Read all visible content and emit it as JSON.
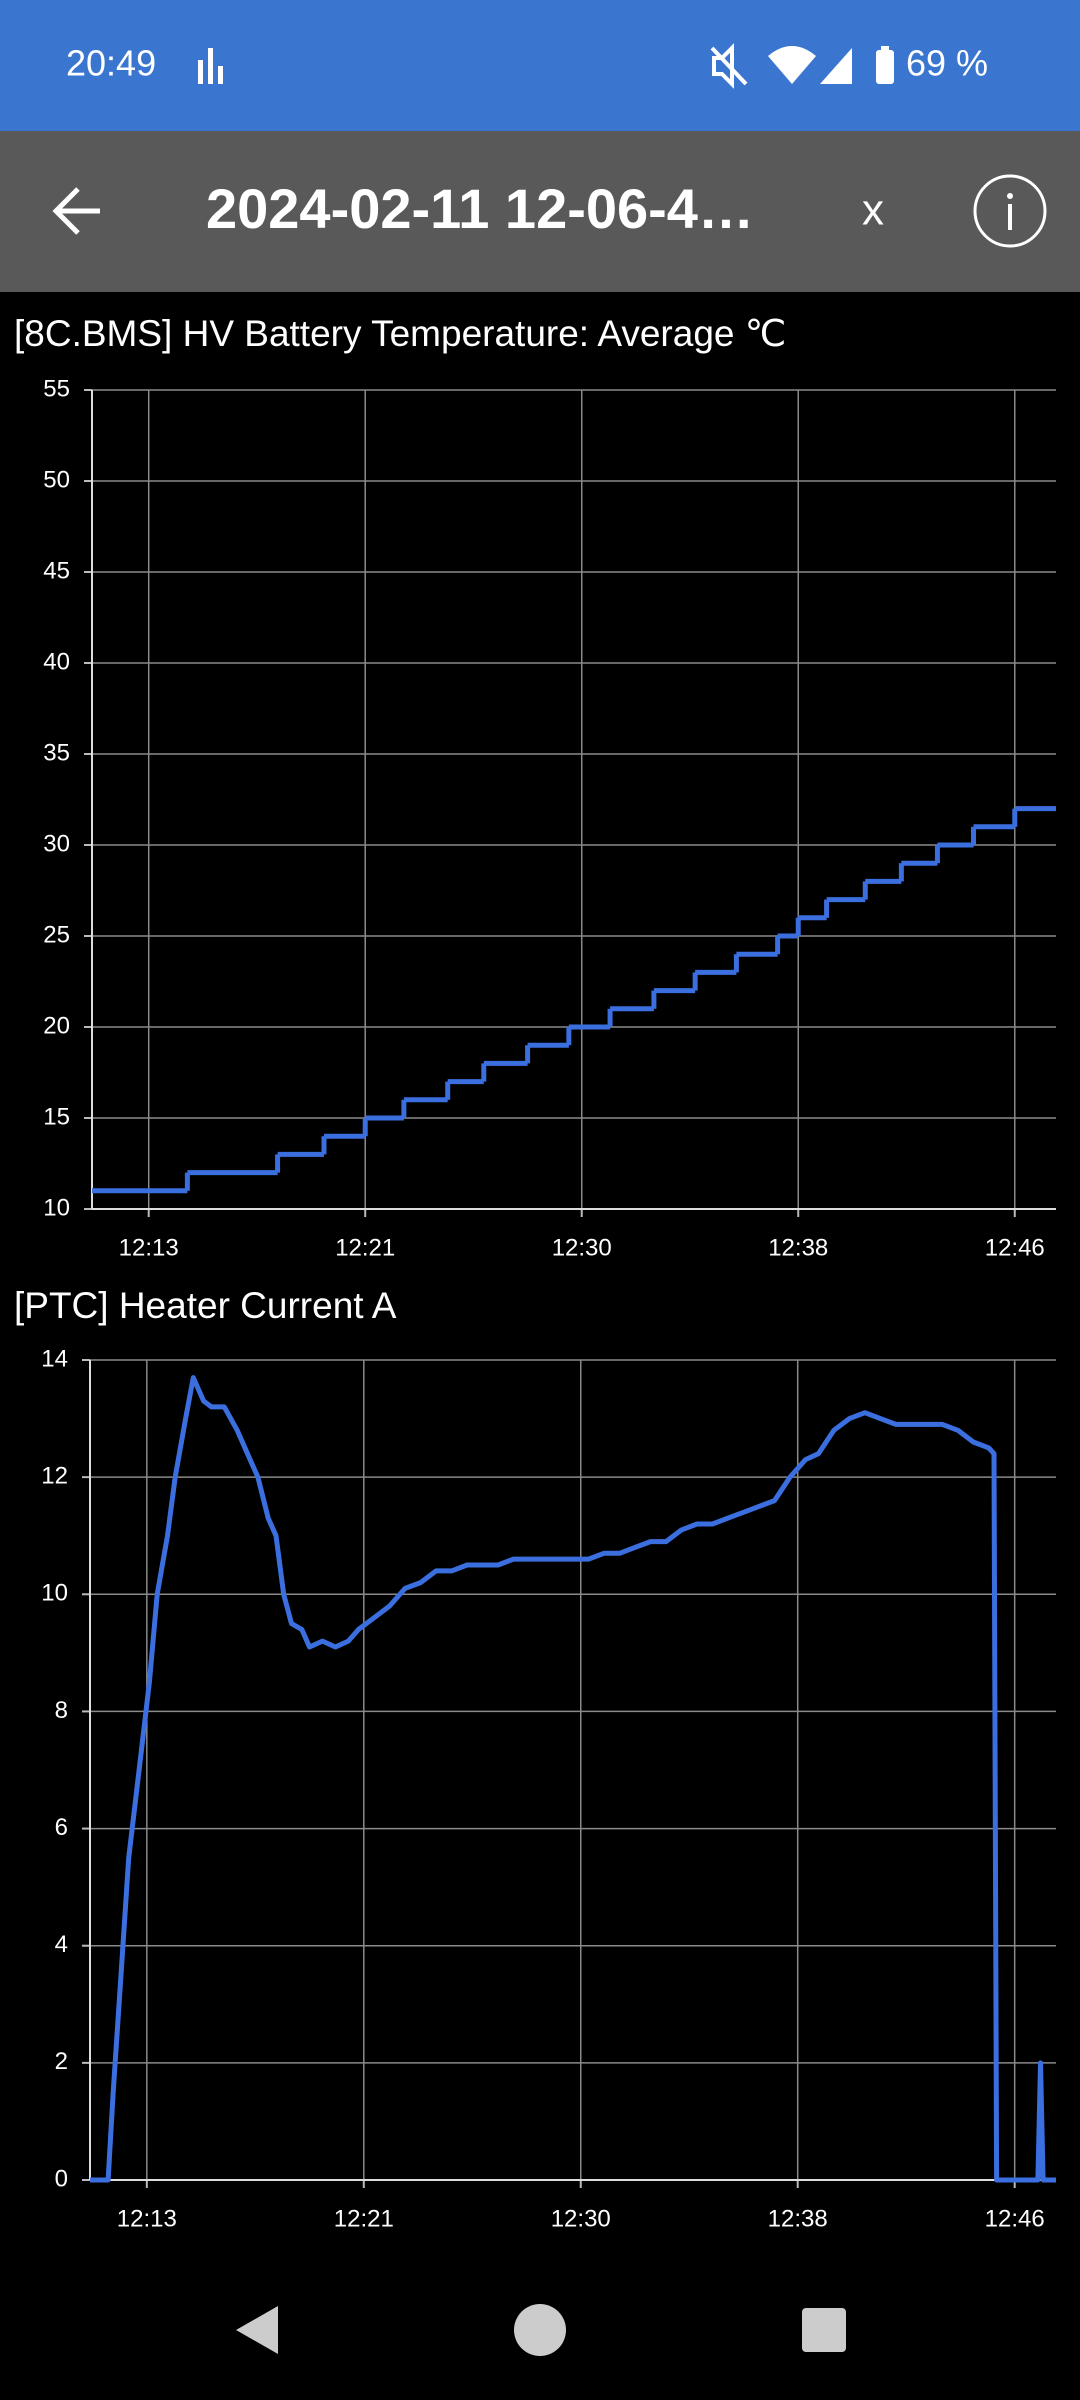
{
  "status_bar": {
    "time": "20:49",
    "battery": "69 %"
  },
  "app_bar": {
    "title": "2024-02-11 12-06-4…",
    "close": "x"
  },
  "chart_data": [
    {
      "type": "line",
      "step": true,
      "title": "[8C.BMS] HV Battery Temperature: Average  ℃",
      "color": "#3b6fe0",
      "grid": true,
      "x": [
        731.0,
        734.7,
        738.2,
        740.0,
        741.6,
        743.1,
        744.8,
        746.2,
        747.9,
        749.5,
        751.1,
        752.8,
        754.4,
        756.0,
        757.6,
        758.4,
        759.5,
        761.0,
        762.4,
        763.8,
        765.2,
        766.8,
        768.4
      ],
      "values": [
        11,
        12,
        13,
        14,
        15,
        16,
        17,
        18,
        19,
        20,
        21,
        22,
        23,
        24,
        25,
        26,
        27,
        28,
        29,
        30,
        31,
        32,
        32
      ],
      "xlim": [
        731.0,
        768.4
      ],
      "xticks": [
        {
          "value": 733.2,
          "label": "12:13"
        },
        {
          "value": 741.6,
          "label": "12:21"
        },
        {
          "value": 750.0,
          "label": "12:30"
        },
        {
          "value": 758.4,
          "label": "12:38"
        },
        {
          "value": 766.8,
          "label": "12:46"
        }
      ],
      "ylim": [
        10,
        55
      ],
      "yticks": [
        10,
        15,
        20,
        25,
        30,
        35,
        40,
        45,
        50,
        55
      ]
    },
    {
      "type": "line",
      "title": "[PTC] Heater Current  A",
      "color": "#3b6fe0",
      "grid": true,
      "x": [
        731.0,
        731.7,
        731.9,
        732.2,
        732.5,
        732.9,
        733.3,
        733.6,
        734.0,
        734.3,
        734.7,
        735.0,
        735.4,
        735.7,
        736.2,
        736.7,
        737.2,
        737.5,
        737.9,
        738.2,
        738.5,
        738.8,
        739.2,
        739.5,
        740.0,
        740.5,
        741.0,
        741.4,
        742.0,
        742.6,
        743.2,
        743.8,
        744.4,
        745.0,
        745.6,
        746.2,
        746.8,
        747.4,
        748.0,
        748.6,
        749.2,
        749.8,
        750.3,
        750.9,
        751.5,
        752.1,
        752.7,
        753.3,
        753.9,
        754.5,
        755.1,
        755.7,
        756.3,
        756.9,
        757.5,
        758.1,
        758.7,
        759.2,
        759.8,
        760.4,
        761.0,
        761.6,
        762.2,
        762.8,
        763.4,
        764.0,
        764.6,
        765.2,
        765.8,
        766.0,
        766.1,
        767.7,
        767.8,
        767.9,
        768.4
      ],
      "values": [
        0,
        0,
        1.5,
        3.5,
        5.5,
        7,
        8.5,
        10,
        11,
        12,
        13,
        13.7,
        13.3,
        13.2,
        13.2,
        12.8,
        12.3,
        12,
        11.3,
        11,
        10,
        9.5,
        9.4,
        9.1,
        9.2,
        9.1,
        9.2,
        9.4,
        9.6,
        9.8,
        10.1,
        10.2,
        10.4,
        10.4,
        10.5,
        10.5,
        10.5,
        10.6,
        10.6,
        10.6,
        10.6,
        10.6,
        10.6,
        10.7,
        10.7,
        10.8,
        10.9,
        10.9,
        11.1,
        11.2,
        11.2,
        11.3,
        11.4,
        11.5,
        11.6,
        12.0,
        12.3,
        12.4,
        12.8,
        13.0,
        13.1,
        13.0,
        12.9,
        12.9,
        12.9,
        12.9,
        12.8,
        12.6,
        12.5,
        12.4,
        0,
        0,
        2,
        0,
        0
      ],
      "xlim": [
        731.0,
        768.4
      ],
      "xticks": [
        {
          "value": 733.2,
          "label": "12:13"
        },
        {
          "value": 741.6,
          "label": "12:21"
        },
        {
          "value": 750.0,
          "label": "12:30"
        },
        {
          "value": 758.4,
          "label": "12:38"
        },
        {
          "value": 766.8,
          "label": "12:46"
        }
      ],
      "ylim": [
        0,
        14
      ],
      "yticks": [
        0,
        2,
        4,
        6,
        8,
        10,
        12,
        14
      ]
    }
  ]
}
